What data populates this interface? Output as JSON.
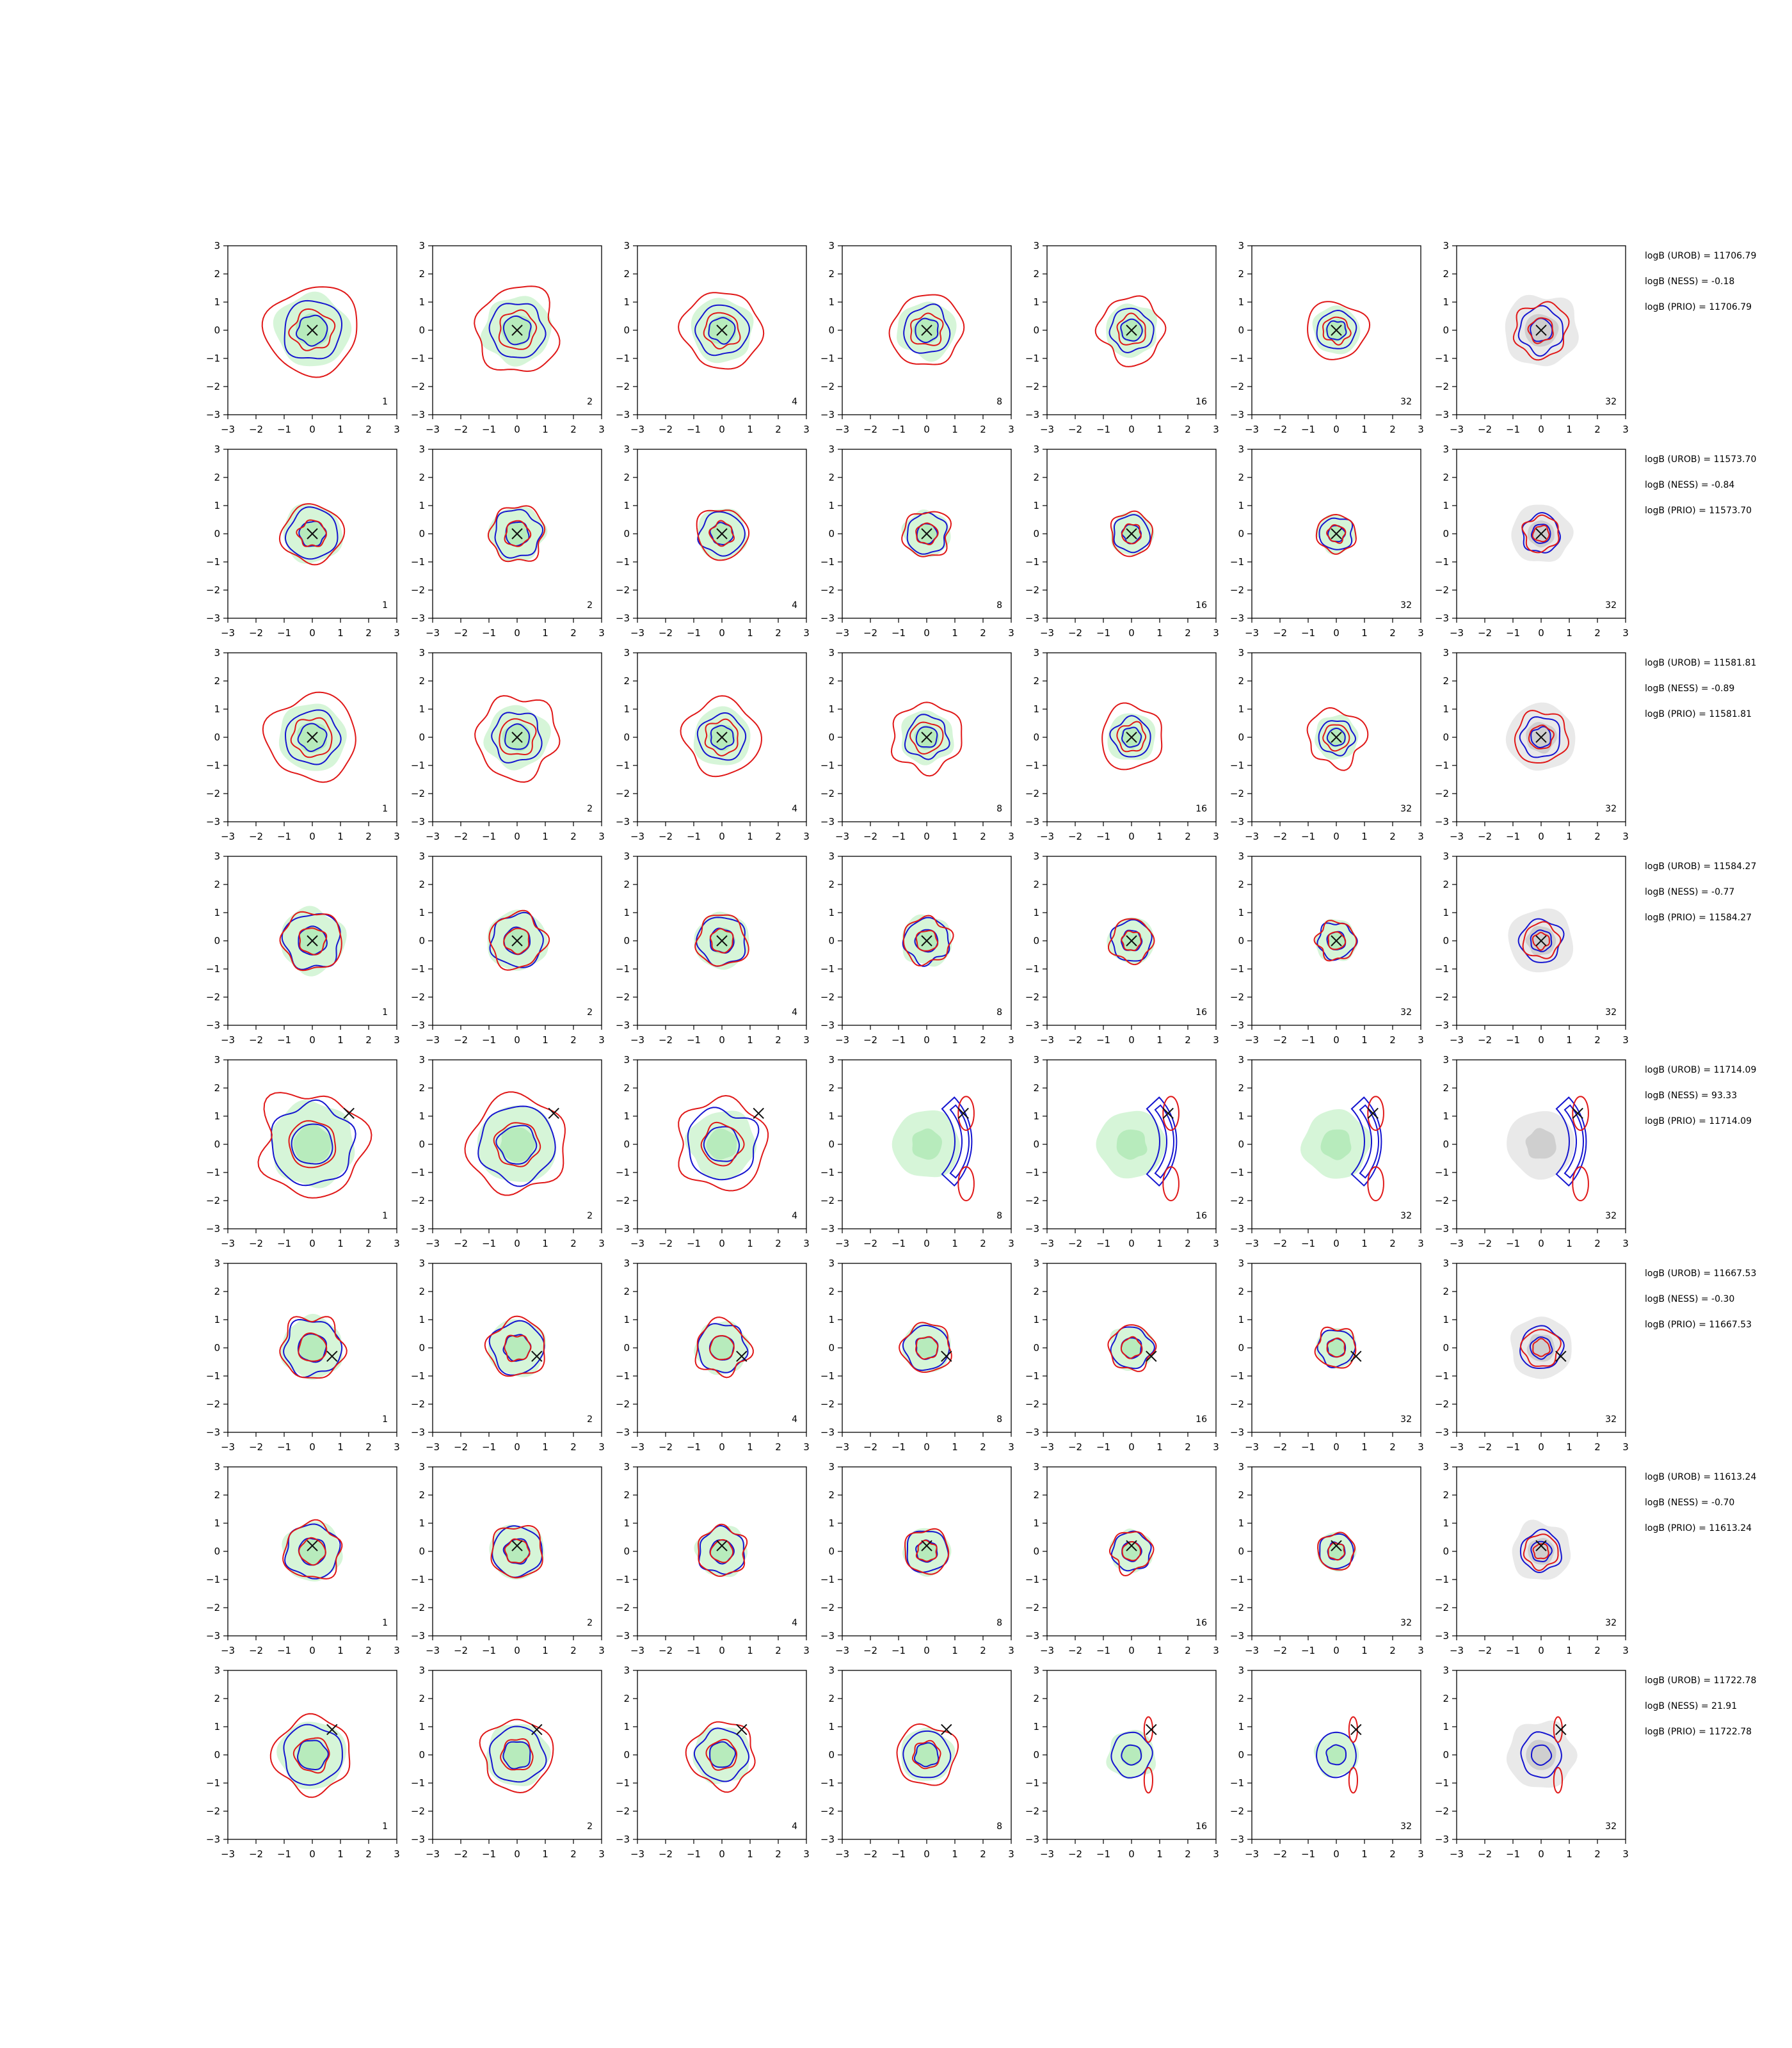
{
  "chart_data": {
    "type": "contour-grid",
    "rows": 8,
    "columns": 7,
    "xlim": [
      -3,
      3
    ],
    "ylim": [
      -3,
      3
    ],
    "ticks": [
      -3,
      -2,
      -1,
      0,
      1,
      2,
      3
    ],
    "column_labels": [
      "1",
      "2",
      "4",
      "8",
      "16",
      "32",
      "32"
    ],
    "series_colors": {
      "samples_fill_inner": "#b7ebbc",
      "samples_fill_outer": "#d6f5d8",
      "prior_fill_inner": "#cfcfcf",
      "prior_fill_outer": "#e9e9e9",
      "blue_contour": "#1515d0",
      "red_contour": "#e01818",
      "marker": "#111111"
    },
    "marker": "x",
    "row_params": [
      {
        "true_point": [
          0.0,
          0.0
        ],
        "r_fill": 1.3,
        "r_blue": 1.05,
        "r_red": 1.6,
        "bimodal": false
      },
      {
        "true_point": [
          0.0,
          0.0
        ],
        "r_fill": 1.05,
        "r_blue": 0.9,
        "r_red": 1.05,
        "bimodal": false
      },
      {
        "true_point": [
          0.0,
          0.0
        ],
        "r_fill": 1.2,
        "r_blue": 0.95,
        "r_red": 1.55,
        "bimodal": false
      },
      {
        "true_point": [
          0.0,
          0.0
        ],
        "r_fill": 1.15,
        "r_blue": 1.0,
        "r_red": 1.05,
        "bimodal": false
      },
      {
        "true_point": [
          1.3,
          1.1
        ],
        "r_fill": 1.5,
        "r_blue": 1.45,
        "r_red": 1.85,
        "bimodal": true
      },
      {
        "true_point": [
          0.7,
          -0.3
        ],
        "r_fill": 1.1,
        "r_blue": 1.0,
        "r_red": 1.1,
        "bimodal": false
      },
      {
        "true_point": [
          0.0,
          0.2
        ],
        "r_fill": 1.05,
        "r_blue": 0.95,
        "r_red": 1.0,
        "bimodal": false
      },
      {
        "true_point": [
          0.7,
          0.9
        ],
        "r_fill": 1.2,
        "r_blue": 1.05,
        "r_red": 1.35,
        "bimodal": true
      }
    ],
    "annotations": [
      [
        "logB (UROB) = 11706.79",
        "logB (NESS) = -0.18",
        "logB (PRIO) = 11706.79"
      ],
      [
        "logB (UROB) = 11573.70",
        "logB (NESS) = -0.84",
        "logB (PRIO) = 11573.70"
      ],
      [
        "logB (UROB) = 11581.81",
        "logB (NESS) = -0.89",
        "logB (PRIO) = 11581.81"
      ],
      [
        "logB (UROB) = 11584.27",
        "logB (NESS) = -0.77",
        "logB (PRIO) = 11584.27"
      ],
      [
        "logB (UROB) = 11714.09",
        "logB (NESS) = 93.33",
        "logB (PRIO) = 11714.09"
      ],
      [
        "logB (UROB) = 11667.53",
        "logB (NESS) = -0.30",
        "logB (PRIO) = 11667.53"
      ],
      [
        "logB (UROB) = 11613.24",
        "logB (NESS) = -0.70",
        "logB (PRIO) = 11613.24"
      ],
      [
        "logB (UROB) = 11722.78",
        "logB (NESS) = 21.91",
        "logB (PRIO) = 11722.78"
      ]
    ],
    "grid": false,
    "legend": "none"
  }
}
